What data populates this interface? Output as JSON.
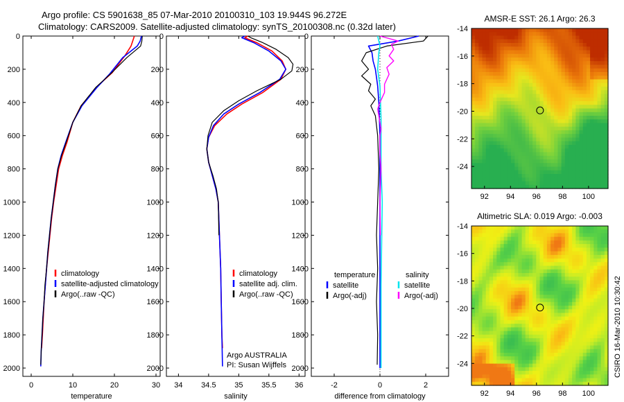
{
  "header": {
    "title_line1": "Argo profile: CS 5901638_85 07-Mar-2010 20100310_103 19.944S 96.272E",
    "title_line2": "Climatology: CARS2009. Satellite-adjusted climatology: synTS_20100308.nc (0.32d later)"
  },
  "side_stamp": "CSIRO 16-Mar-2010 10:30:42",
  "chart_data": [
    {
      "type": "line",
      "xlabel": "temperature",
      "ylabel": "",
      "xlim": [
        -2,
        31
      ],
      "ylim": [
        2050,
        0
      ],
      "xticks": [
        0,
        10,
        20,
        30
      ],
      "yticks": [
        0,
        200,
        400,
        600,
        800,
        1000,
        1200,
        1400,
        1600,
        1800,
        2000
      ],
      "legend": [
        "climatology",
        "satellite-adjusted climatology",
        "Argo(..raw -QC)"
      ],
      "legend_position": "bottom-center",
      "series": [
        {
          "name": "climatology",
          "color": "#ff0000",
          "width": 1.6,
          "points": [
            [
              24.8,
              0
            ],
            [
              24.4,
              30
            ],
            [
              24,
              60
            ],
            [
              22.5,
              120
            ],
            [
              19.5,
              220
            ],
            [
              16,
              300
            ],
            [
              12,
              420
            ],
            [
              10,
              520
            ],
            [
              8.6,
              640
            ],
            [
              7.5,
              720
            ],
            [
              6.6,
              800
            ],
            [
              6,
              900
            ],
            [
              5.4,
              1000
            ],
            [
              4.9,
              1100
            ],
            [
              4.5,
              1200
            ],
            [
              4.1,
              1300
            ],
            [
              3.7,
              1400
            ],
            [
              3.4,
              1500
            ],
            [
              3.1,
              1600
            ],
            [
              2.9,
              1700
            ],
            [
              2.7,
              1800
            ],
            [
              2.5,
              1880
            ]
          ]
        },
        {
          "name": "satellite-adjusted climatology",
          "color": "#0000ff",
          "width": 1.6,
          "points": [
            [
              26.5,
              0
            ],
            [
              26.2,
              30
            ],
            [
              25.5,
              60
            ],
            [
              22,
              130
            ],
            [
              18.8,
              230
            ],
            [
              15.8,
              310
            ],
            [
              12.2,
              420
            ],
            [
              10,
              520
            ],
            [
              8.3,
              640
            ],
            [
              7.2,
              720
            ],
            [
              6.4,
              800
            ],
            [
              5.8,
              900
            ],
            [
              5.3,
              1000
            ],
            [
              4.8,
              1100
            ],
            [
              4.4,
              1200
            ],
            [
              4,
              1300
            ],
            [
              3.7,
              1400
            ],
            [
              3.4,
              1500
            ],
            [
              3.1,
              1600
            ],
            [
              2.8,
              1700
            ],
            [
              2.6,
              1800
            ],
            [
              2.4,
              1900
            ],
            [
              2.3,
              1990
            ]
          ]
        },
        {
          "name": "Argo(..raw -QC)",
          "color": "#000000",
          "width": 1.2,
          "points": [
            [
              26.7,
              0
            ],
            [
              26.6,
              30
            ],
            [
              26.3,
              60
            ],
            [
              23,
              130
            ],
            [
              19,
              230
            ],
            [
              15.5,
              310
            ],
            [
              12,
              420
            ],
            [
              10,
              520
            ],
            [
              8.4,
              640
            ],
            [
              7.3,
              720
            ],
            [
              6.4,
              800
            ],
            [
              5.8,
              900
            ],
            [
              5.3,
              1000
            ],
            [
              4.8,
              1100
            ],
            [
              4.4,
              1200
            ],
            [
              4,
              1300
            ],
            [
              3.7,
              1400
            ],
            [
              3.3,
              1500
            ],
            [
              3.1,
              1600
            ],
            [
              2.8,
              1700
            ],
            [
              2.6,
              1800
            ],
            [
              2.4,
              1900
            ],
            [
              2.3,
              1980
            ]
          ]
        }
      ]
    },
    {
      "type": "line",
      "xlabel": "salinity",
      "ylabel": "",
      "xlim": [
        33.8,
        36.1
      ],
      "ylim": [
        2050,
        0
      ],
      "xticks": [
        34,
        34.5,
        35,
        35.5,
        36
      ],
      "yticks": [
        0,
        200,
        400,
        600,
        800,
        1000,
        1200,
        1400,
        1600,
        1800,
        2000
      ],
      "legend": [
        "climatology",
        "satellite adj. clim.",
        "Argo(..raw -QC)"
      ],
      "legend_position": "bottom-right",
      "annotation": [
        "Argo AUSTRALIA",
        "PI: Susan Wijffels"
      ],
      "series": [
        {
          "name": "climatology",
          "color": "#ff0000",
          "width": 1.6,
          "points": [
            [
              35.15,
              0
            ],
            [
              35.1,
              10
            ],
            [
              35.3,
              40
            ],
            [
              35.55,
              90
            ],
            [
              35.72,
              150
            ],
            [
              35.78,
              200
            ],
            [
              35.7,
              260
            ],
            [
              35.4,
              340
            ],
            [
              35.05,
              410
            ],
            [
              34.8,
              470
            ],
            [
              34.6,
              540
            ],
            [
              34.5,
              610
            ],
            [
              34.47,
              680
            ],
            [
              34.5,
              760
            ],
            [
              34.56,
              840
            ],
            [
              34.62,
              920
            ],
            [
              34.66,
              1000
            ],
            [
              34.68,
              1200
            ],
            [
              34.7,
              1400
            ],
            [
              34.71,
              1600
            ],
            [
              34.72,
              1800
            ],
            [
              34.73,
              1880
            ]
          ]
        },
        {
          "name": "satellite adj. clim.",
          "color": "#0000ff",
          "width": 1.6,
          "points": [
            [
              35.1,
              0
            ],
            [
              35.05,
              10
            ],
            [
              35.25,
              40
            ],
            [
              35.5,
              90
            ],
            [
              35.7,
              150
            ],
            [
              35.78,
              200
            ],
            [
              35.68,
              260
            ],
            [
              35.35,
              340
            ],
            [
              35,
              410
            ],
            [
              34.75,
              470
            ],
            [
              34.58,
              540
            ],
            [
              34.5,
              610
            ],
            [
              34.47,
              680
            ],
            [
              34.5,
              760
            ],
            [
              34.56,
              840
            ],
            [
              34.62,
              920
            ],
            [
              34.66,
              1000
            ],
            [
              34.68,
              1200
            ],
            [
              34.7,
              1400
            ],
            [
              34.71,
              1600
            ],
            [
              34.72,
              1800
            ],
            [
              34.73,
              1990
            ]
          ]
        },
        {
          "name": "Argo(..raw -QC)",
          "color": "#000000",
          "width": 1.2,
          "points": [
            [
              35.15,
              0
            ],
            [
              35.2,
              10
            ],
            [
              35.4,
              40
            ],
            [
              35.62,
              80
            ],
            [
              35.82,
              130
            ],
            [
              35.9,
              170
            ],
            [
              35.88,
              210
            ],
            [
              35.7,
              260
            ],
            [
              35.3,
              330
            ],
            [
              35,
              390
            ],
            [
              34.75,
              450
            ],
            [
              34.56,
              520
            ],
            [
              34.49,
              600
            ],
            [
              34.47,
              680
            ],
            [
              34.5,
              760
            ],
            [
              34.57,
              840
            ],
            [
              34.63,
              920
            ],
            [
              34.66,
              1000
            ],
            [
              34.67,
              1200
            ]
          ]
        }
      ]
    },
    {
      "type": "line",
      "xlabel": "difference from climatology",
      "ylabel": "",
      "xlim": [
        -3,
        3
      ],
      "ylim": [
        2050,
        0
      ],
      "xticks": [
        -2,
        0,
        2
      ],
      "yticks": [
        0,
        200,
        400,
        600,
        800,
        1000,
        1200,
        1400,
        1600,
        1800,
        2000
      ],
      "legend": [
        "temperature",
        "satellite",
        "Argo(-adj)",
        "salinity",
        "satellite",
        "Argo(-adj)"
      ],
      "legend_position": "bottom-center",
      "series": [
        {
          "name": "satellite",
          "color": "#0000ff",
          "width": 1.6,
          "points": [
            [
              1.7,
              0
            ],
            [
              0.8,
              30
            ],
            [
              -0.5,
              60
            ],
            [
              -0.35,
              100
            ],
            [
              -0.3,
              150
            ],
            [
              -0.2,
              200
            ],
            [
              -0.1,
              300
            ],
            [
              -0.05,
              400
            ],
            [
              0,
              600
            ],
            [
              0,
              900
            ],
            [
              0,
              1500
            ],
            [
              0,
              2000
            ]
          ]
        },
        {
          "name": "Argo(-adj)",
          "color": "#000000",
          "width": 1.2,
          "points": [
            [
              2.1,
              0
            ],
            [
              1.9,
              30
            ],
            [
              0.3,
              60
            ],
            [
              -0.6,
              100
            ],
            [
              -0.8,
              150
            ],
            [
              -0.5,
              200
            ],
            [
              -0.8,
              240
            ],
            [
              -0.4,
              290
            ],
            [
              -0.5,
              330
            ],
            [
              -0.2,
              380
            ],
            [
              -0.4,
              420
            ],
            [
              -0.2,
              480
            ],
            [
              -0.1,
              600
            ],
            [
              -0.05,
              800
            ],
            [
              -0.1,
              1000
            ],
            [
              -0.15,
              1200
            ],
            [
              -0.1,
              1400
            ],
            [
              -0.15,
              1600
            ],
            [
              -0.1,
              1800
            ],
            [
              -0.12,
              1980
            ]
          ]
        },
        {
          "name": "salinity satellite",
          "color": "#00e5ee",
          "width": 1.6,
          "points": [
            [
              -0.1,
              0
            ],
            [
              -0.05,
              30
            ],
            [
              0,
              60
            ],
            [
              -0.05,
              100
            ],
            [
              -0.1,
              200
            ],
            [
              0,
              300
            ],
            [
              0.05,
              500
            ],
            [
              0.05,
              800
            ],
            [
              0.1,
              1000
            ],
            [
              0.05,
              1500
            ],
            [
              0.05,
              2000
            ]
          ]
        },
        {
          "name": "salinity Argo(-adj)",
          "color": "#ff00ff",
          "width": 1.4,
          "points": [
            [
              0,
              0
            ],
            [
              0.8,
              30
            ],
            [
              0.5,
              50
            ],
            [
              0.6,
              80
            ],
            [
              0.4,
              120
            ],
            [
              0.6,
              150
            ],
            [
              0.3,
              190
            ],
            [
              0.4,
              230
            ],
            [
              0.2,
              290
            ],
            [
              0.2,
              340
            ],
            [
              0,
              400
            ],
            [
              -0.1,
              440
            ],
            [
              0,
              520
            ],
            [
              0.05,
              560
            ],
            [
              0,
              600
            ],
            [
              0,
              700
            ],
            [
              0.05,
              800
            ],
            [
              0,
              1000
            ],
            [
              0.02,
              1200
            ]
          ]
        }
      ]
    },
    {
      "type": "heatmap",
      "title": "AMSR-E SST: 26.1 Argo: 26.3",
      "xlim": [
        91,
        101.5
      ],
      "ylim": [
        -25.6,
        -14
      ],
      "xticks": [
        92,
        94,
        96,
        98,
        100
      ],
      "yticks": [
        -14,
        -16,
        -18,
        -20,
        -22,
        -24
      ],
      "marker": [
        96.27,
        -19.94
      ]
    },
    {
      "type": "heatmap",
      "title": "Altimetric SLA: 0.019 Argo: -0.003",
      "xlim": [
        91,
        101.5
      ],
      "ylim": [
        -25.6,
        -14
      ],
      "xticks": [
        92,
        94,
        96,
        98,
        100
      ],
      "yticks": [
        -14,
        -16,
        -18,
        -20,
        -22,
        -24
      ],
      "marker": [
        96.27,
        -19.94
      ]
    }
  ],
  "colors": {
    "climatology": "#ff0000",
    "satellite": "#0000ff",
    "argo": "#000000",
    "salinity_satellite": "#00e5ee",
    "salinity_argo": "#ff00ff"
  }
}
